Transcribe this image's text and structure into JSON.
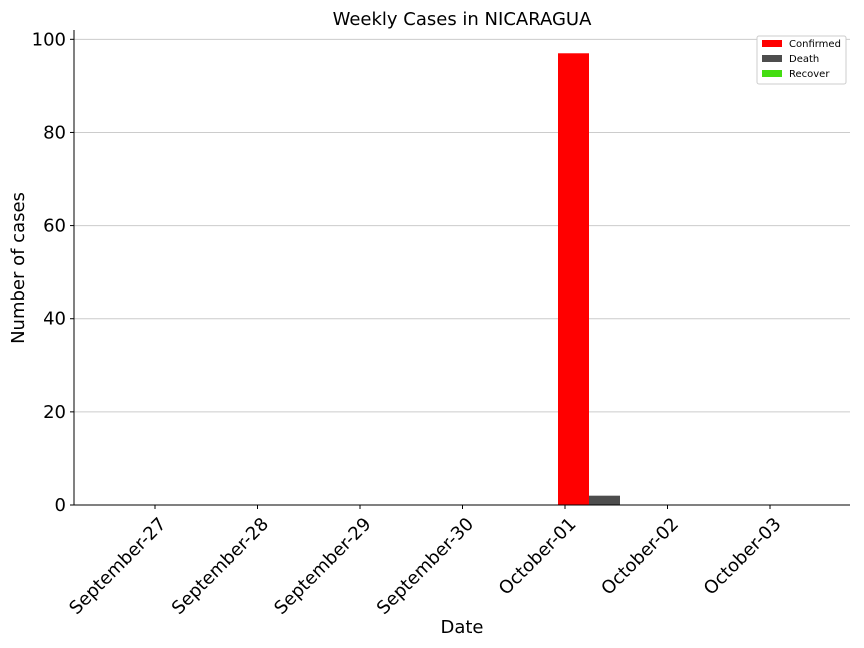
{
  "chart_data": {
    "type": "bar",
    "title": "Weekly Cases in NICARAGUA",
    "xlabel": "Date",
    "ylabel": "Number of cases",
    "categories": [
      "September-27",
      "September-28",
      "September-29",
      "September-30",
      "October-01",
      "October-02",
      "October-03"
    ],
    "series": [
      {
        "name": "Confirmed",
        "color": "#ff0000",
        "values": [
          0,
          0,
          0,
          0,
          97,
          0,
          0
        ]
      },
      {
        "name": "Death",
        "color": "#4d4d4d",
        "values": [
          0,
          0,
          0,
          0,
          2,
          0,
          0
        ]
      },
      {
        "name": "Recover",
        "color": "#44dd11",
        "values": [
          0,
          0,
          0,
          0,
          0,
          0,
          0
        ]
      }
    ],
    "ylim": [
      0,
      102
    ],
    "yticks": [
      0,
      20,
      40,
      60,
      80,
      100
    ],
    "grid": "horizontal",
    "legend_position": "top-right"
  }
}
